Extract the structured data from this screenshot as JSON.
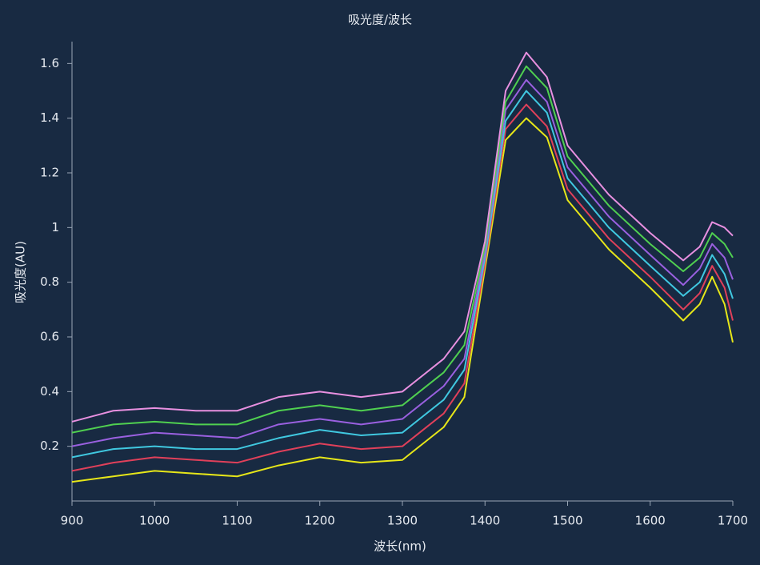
{
  "chart_data": {
    "type": "line",
    "title": "吸光度/波长",
    "x_label": "波长(nm)",
    "y_label": "吸光度(AU)",
    "x": [
      900,
      950,
      1000,
      1050,
      1100,
      1150,
      1200,
      1250,
      1300,
      1350,
      1375,
      1400,
      1425,
      1450,
      1475,
      1500,
      1550,
      1600,
      1640,
      1660,
      1675,
      1690,
      1700
    ],
    "series": [
      {
        "color": "#e6e619",
        "values": [
          0.07,
          0.09,
          0.11,
          0.1,
          0.09,
          0.13,
          0.16,
          0.14,
          0.15,
          0.27,
          0.38,
          0.85,
          1.32,
          1.4,
          1.33,
          1.1,
          0.92,
          0.78,
          0.66,
          0.72,
          0.82,
          0.72,
          0.58
        ]
      },
      {
        "color": "#e0405a",
        "values": [
          0.11,
          0.14,
          0.16,
          0.15,
          0.14,
          0.18,
          0.21,
          0.19,
          0.2,
          0.32,
          0.43,
          0.87,
          1.36,
          1.45,
          1.37,
          1.14,
          0.96,
          0.82,
          0.7,
          0.76,
          0.86,
          0.78,
          0.66
        ]
      },
      {
        "color": "#40c8e0",
        "values": [
          0.16,
          0.19,
          0.2,
          0.19,
          0.19,
          0.23,
          0.26,
          0.24,
          0.25,
          0.37,
          0.48,
          0.89,
          1.39,
          1.5,
          1.42,
          1.18,
          1.0,
          0.86,
          0.75,
          0.8,
          0.9,
          0.83,
          0.74
        ]
      },
      {
        "color": "#9a60e0",
        "values": [
          0.2,
          0.23,
          0.25,
          0.24,
          0.23,
          0.28,
          0.3,
          0.28,
          0.3,
          0.42,
          0.52,
          0.91,
          1.43,
          1.54,
          1.46,
          1.22,
          1.04,
          0.9,
          0.79,
          0.85,
          0.94,
          0.89,
          0.81
        ]
      },
      {
        "color": "#50d050",
        "values": [
          0.25,
          0.28,
          0.29,
          0.28,
          0.28,
          0.33,
          0.35,
          0.33,
          0.35,
          0.47,
          0.57,
          0.93,
          1.46,
          1.59,
          1.51,
          1.26,
          1.08,
          0.94,
          0.84,
          0.89,
          0.98,
          0.94,
          0.89
        ]
      },
      {
        "color": "#e890e0",
        "values": [
          0.29,
          0.33,
          0.34,
          0.33,
          0.33,
          0.38,
          0.4,
          0.38,
          0.4,
          0.52,
          0.62,
          0.95,
          1.5,
          1.64,
          1.55,
          1.3,
          1.12,
          0.98,
          0.88,
          0.93,
          1.02,
          1.0,
          0.97
        ]
      }
    ],
    "xlim": [
      900,
      1700
    ],
    "xticks": [
      900,
      1000,
      1100,
      1200,
      1300,
      1400,
      1500,
      1600,
      1700
    ],
    "ylim": [
      0,
      1.68
    ],
    "yticks": [
      0.2,
      0.4,
      0.6,
      0.8,
      1.0,
      1.2,
      1.4,
      1.6
    ]
  }
}
